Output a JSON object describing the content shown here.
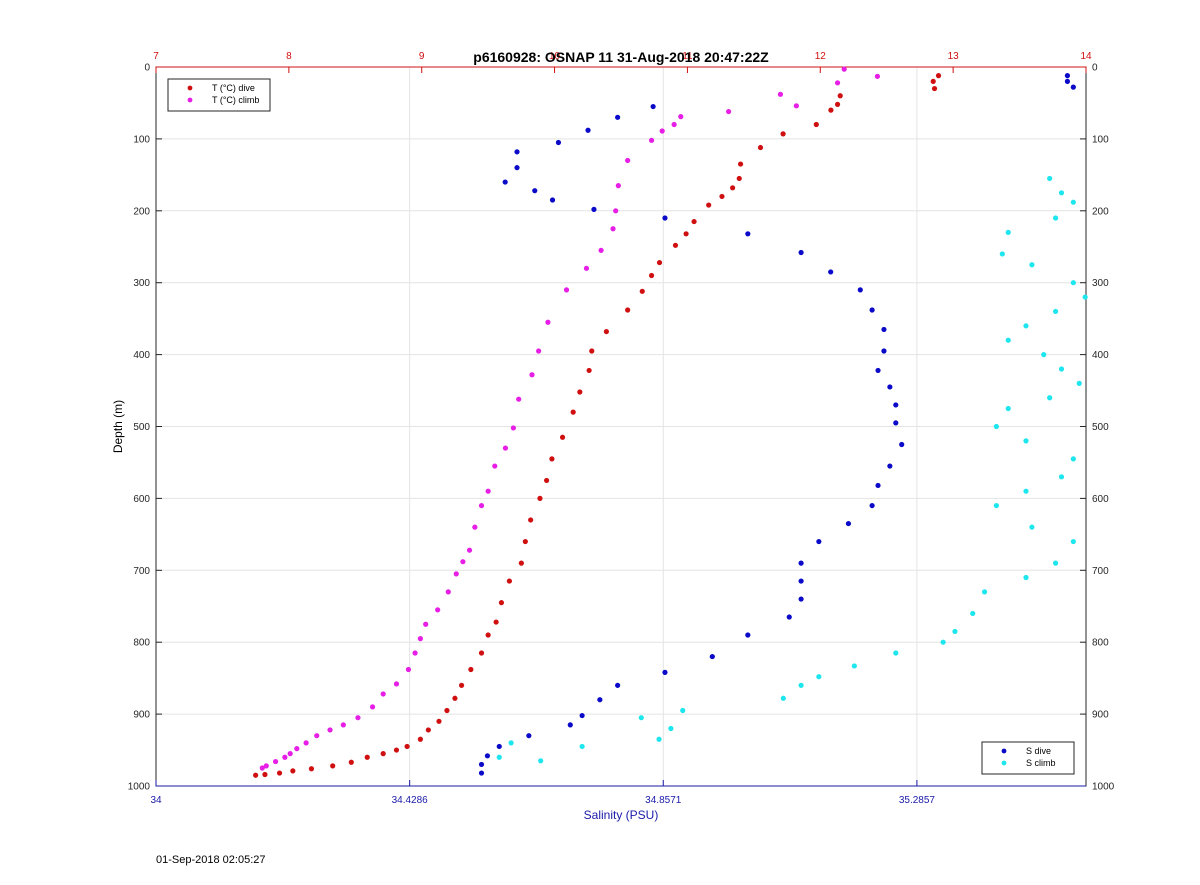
{
  "footer": {
    "timestamp": "01-Sep-2018 02:05:27"
  },
  "colors": {
    "temperature_axis": "#d01010",
    "salinity_axis": "#1a1aa8",
    "T_dive": "#d01010",
    "T_climb": "#e61ee6",
    "S_dive": "#0a0ac8",
    "S_climb": "#1ee6ee",
    "grid": "#e4e4e4"
  },
  "chart_data": {
    "type": "scatter",
    "title": "p6160928: OSNAP 11 31-Aug-2018 20:47:22Z",
    "ylabel": "Depth (m)",
    "xlabel": "Salinity (PSU)",
    "grid": true,
    "y_reversed": true,
    "ylim": [
      0,
      1000
    ],
    "y_ticks": [
      "0",
      "100",
      "200",
      "300",
      "400",
      "500",
      "600",
      "700",
      "800",
      "900",
      "1000"
    ],
    "x_bottom": {
      "label": "Salinity (PSU)",
      "range": [
        34,
        35.5714
      ],
      "ticks": [
        34,
        34.4286,
        34.8571,
        35.2857
      ],
      "tick_labels": [
        "34",
        "34.4286",
        "34.8571",
        "35.2857"
      ]
    },
    "x_top": {
      "label": "",
      "range": [
        7,
        14
      ],
      "ticks": [
        7,
        8,
        9,
        10,
        11,
        12,
        13,
        14
      ],
      "tick_labels": [
        "7",
        "8",
        "9",
        "10",
        "11",
        "12",
        "13",
        "14"
      ]
    },
    "legends": [
      {
        "position": "top-left",
        "entries": [
          {
            "key": "T_dive",
            "label": "T (°C) dive"
          },
          {
            "key": "T_climb",
            "label": "T (°C) climb"
          }
        ]
      },
      {
        "position": "bottom-right",
        "entries": [
          {
            "key": "S_dive",
            "label": "S dive"
          },
          {
            "key": "S_climb",
            "label": "S climb"
          }
        ]
      }
    ],
    "series": [
      {
        "key": "T_dive",
        "name": "T (°C) dive",
        "axis": "top",
        "x": [
          12.89,
          12.85,
          12.86,
          12.15,
          12.13,
          12.08,
          11.97,
          11.72,
          11.55,
          11.4,
          11.39,
          11.34,
          11.26,
          11.16,
          11.05,
          10.99,
          10.91,
          10.79,
          10.73,
          10.66,
          10.55,
          10.39,
          10.28,
          10.26,
          10.19,
          10.14,
          10.06,
          9.98,
          9.94,
          9.89,
          9.82,
          9.78,
          9.75,
          9.66,
          9.6,
          9.56,
          9.5,
          9.45,
          9.37,
          9.3,
          9.25,
          9.19,
          9.13,
          9.05,
          8.99,
          8.89,
          8.81,
          8.71,
          8.59,
          8.47,
          8.33,
          8.17,
          8.03,
          7.93,
          7.82,
          7.75
        ],
        "y": [
          12,
          20,
          30,
          40,
          52,
          60,
          80,
          93,
          112,
          135,
          155,
          168,
          180,
          192,
          215,
          232,
          248,
          272,
          290,
          312,
          338,
          368,
          395,
          422,
          452,
          480,
          515,
          545,
          575,
          600,
          630,
          660,
          690,
          715,
          745,
          772,
          790,
          815,
          838,
          860,
          878,
          895,
          910,
          922,
          935,
          945,
          950,
          955,
          960,
          967,
          972,
          976,
          979,
          982,
          984,
          985
        ]
      },
      {
        "key": "T_climb",
        "name": "T (°C) climb",
        "axis": "top",
        "x": [
          12.18,
          12.43,
          12.13,
          11.7,
          11.82,
          11.31,
          10.95,
          10.9,
          10.81,
          10.73,
          10.55,
          10.48,
          10.46,
          10.44,
          10.35,
          10.24,
          10.09,
          9.95,
          9.88,
          9.83,
          9.73,
          9.69,
          9.63,
          9.55,
          9.5,
          9.45,
          9.4,
          9.36,
          9.31,
          9.26,
          9.2,
          9.12,
          9.03,
          8.99,
          8.95,
          8.9,
          8.81,
          8.71,
          8.63,
          8.52,
          8.41,
          8.31,
          8.21,
          8.13,
          8.06,
          8.01,
          7.97,
          7.9,
          7.83,
          7.8
        ],
        "y": [
          3,
          13,
          22,
          38,
          54,
          62,
          69,
          80,
          89,
          102,
          130,
          165,
          200,
          225,
          255,
          280,
          310,
          355,
          395,
          428,
          462,
          502,
          530,
          555,
          590,
          610,
          640,
          672,
          688,
          705,
          730,
          755,
          775,
          795,
          815,
          838,
          858,
          872,
          890,
          905,
          915,
          922,
          930,
          940,
          948,
          955,
          960,
          966,
          972,
          975
        ]
      },
      {
        "key": "S_dive",
        "name": "S dive",
        "axis": "bottom",
        "x": [
          35.54,
          35.54,
          35.55,
          34.84,
          34.78,
          34.73,
          34.68,
          34.61,
          34.61,
          34.59,
          34.64,
          34.67,
          34.74,
          34.86,
          35.0,
          35.09,
          35.14,
          35.19,
          35.21,
          35.23,
          35.23,
          35.22,
          35.24,
          35.25,
          35.25,
          35.26,
          35.24,
          35.22,
          35.21,
          35.17,
          35.12,
          35.09,
          35.09,
          35.09,
          35.07,
          35.0,
          34.94,
          34.86,
          34.78,
          34.75,
          34.72,
          34.7,
          34.63,
          34.58,
          34.56,
          34.55,
          34.55
        ],
        "y": [
          12,
          20,
          28,
          55,
          70,
          88,
          105,
          118,
          140,
          160,
          172,
          185,
          198,
          210,
          232,
          258,
          285,
          310,
          338,
          365,
          395,
          422,
          445,
          470,
          495,
          525,
          555,
          582,
          610,
          635,
          660,
          690,
          715,
          740,
          765,
          790,
          820,
          842,
          860,
          880,
          902,
          915,
          930,
          945,
          958,
          970,
          982
        ]
      },
      {
        "key": "S_climb",
        "name": "S climb",
        "axis": "bottom",
        "x": [
          35.51,
          35.53,
          35.55,
          35.52,
          35.44,
          35.43,
          35.48,
          35.55,
          35.57,
          35.52,
          35.47,
          35.44,
          35.5,
          35.53,
          35.56,
          35.51,
          35.44,
          35.42,
          35.47,
          35.55,
          35.53,
          35.47,
          35.42,
          35.48,
          35.55,
          35.52,
          35.47,
          35.4,
          35.38,
          35.35,
          35.33,
          35.25,
          35.18,
          35.12,
          35.09,
          35.06,
          34.89,
          34.87,
          34.85,
          34.82,
          34.72,
          34.65,
          34.6,
          34.58
        ],
        "y": [
          155,
          175,
          188,
          210,
          230,
          260,
          275,
          300,
          320,
          340,
          360,
          380,
          400,
          420,
          440,
          460,
          475,
          500,
          520,
          545,
          570,
          590,
          610,
          640,
          660,
          690,
          710,
          730,
          760,
          785,
          800,
          815,
          833,
          848,
          860,
          878,
          895,
          920,
          935,
          905,
          945,
          965,
          940,
          960
        ]
      }
    ]
  }
}
